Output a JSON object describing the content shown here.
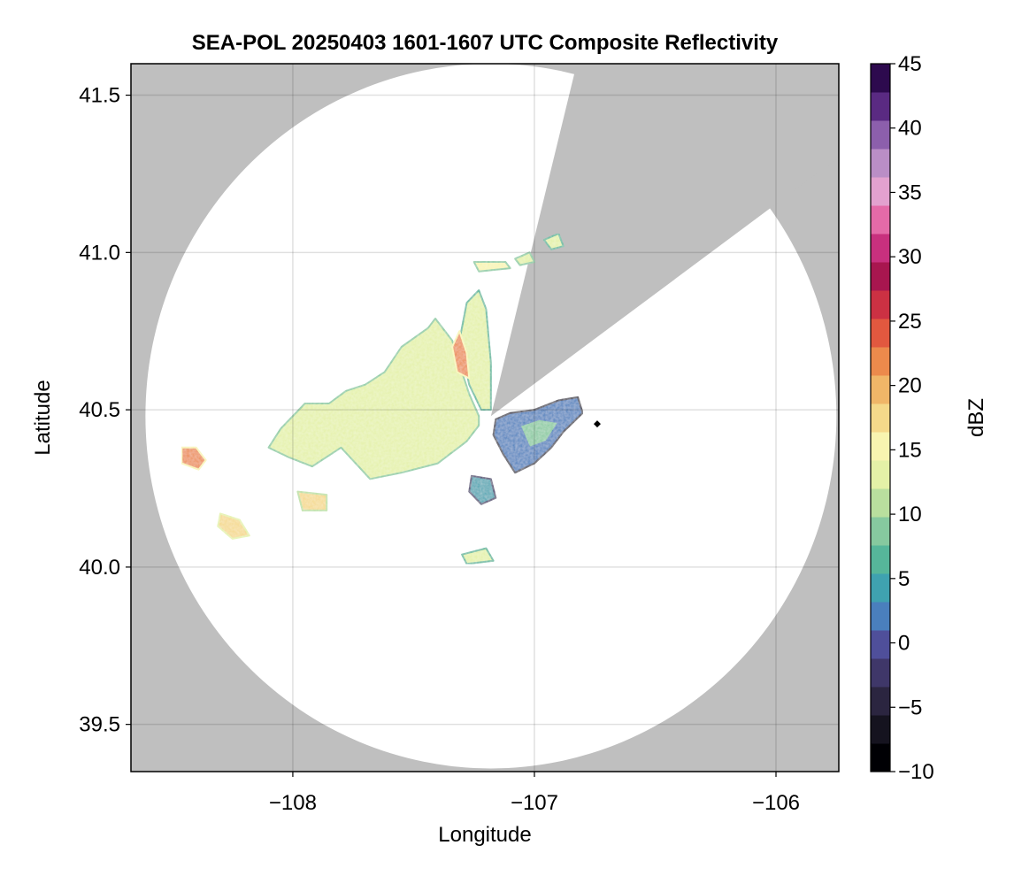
{
  "chart_data": {
    "type": "heatmap",
    "title": "SEA-POL 20250403 1601-1607 UTC Composite Reflectivity",
    "xlabel": "Longitude",
    "ylabel": "Latitude",
    "xlim": [
      -108.67,
      -105.74
    ],
    "ylim": [
      39.35,
      41.6
    ],
    "x_ticks": [
      -108,
      -107,
      -106
    ],
    "x_tick_labels": [
      "−108",
      "−107",
      "−106"
    ],
    "y_ticks": [
      39.5,
      40.0,
      40.5,
      41.0,
      41.5
    ],
    "y_tick_labels": [
      "39.5",
      "40.0",
      "40.5",
      "41.0",
      "41.5"
    ],
    "grid": true,
    "background_color": "#bfbfbf",
    "radar": {
      "center_lon": -107.18,
      "center_lat": 40.48,
      "range_lon": 1.43,
      "range_lat": 1.12,
      "blocked_sectors": [
        {
          "from_lon": -106.85,
          "from_lat": 41.52,
          "to_lon": -106.06,
          "to_lat": 41.12
        }
      ]
    },
    "colorbar": {
      "label": "dBZ",
      "min": -10,
      "max": 45,
      "ticks": [
        -10,
        -5,
        0,
        5,
        10,
        15,
        20,
        25,
        30,
        35,
        40,
        45
      ],
      "tick_labels": [
        "−10",
        "−5",
        "0",
        "5",
        "10",
        "15",
        "20",
        "25",
        "30",
        "35",
        "40",
        "45"
      ],
      "colors": [
        "#000004",
        "#15131f",
        "#2b2540",
        "#3f3769",
        "#4f4f9a",
        "#4a7fbd",
        "#3fa2b0",
        "#56b69a",
        "#86c99f",
        "#b9df9e",
        "#e4f1a7",
        "#f8f4b0",
        "#f5d98a",
        "#f0b668",
        "#ec8a4c",
        "#e2583f",
        "#cc3143",
        "#a8164f",
        "#c8307e",
        "#e46aa8",
        "#e3a1cf",
        "#ba8ec6",
        "#8c5fac",
        "#5a2a82",
        "#2d0a4e"
      ]
    },
    "echo_regions": [
      {
        "name": "main",
        "dbz": 14,
        "points": [
          [
            -107.23,
            40.48
          ],
          [
            -107.27,
            40.55
          ],
          [
            -107.3,
            40.62
          ],
          [
            -107.34,
            40.72
          ],
          [
            -107.41,
            40.79
          ],
          [
            -107.44,
            40.76
          ],
          [
            -107.55,
            40.7
          ],
          [
            -107.62,
            40.62
          ],
          [
            -107.7,
            40.58
          ],
          [
            -107.78,
            40.56
          ],
          [
            -107.85,
            40.52
          ],
          [
            -107.95,
            40.52
          ],
          [
            -108.05,
            40.44
          ],
          [
            -108.1,
            40.38
          ],
          [
            -108.02,
            40.35
          ],
          [
            -107.92,
            40.32
          ],
          [
            -107.8,
            40.38
          ],
          [
            -107.68,
            40.28
          ],
          [
            -107.55,
            40.3
          ],
          [
            -107.4,
            40.33
          ],
          [
            -107.28,
            40.4
          ],
          [
            -107.23,
            40.45
          ]
        ]
      },
      {
        "name": "north-arm",
        "dbz": 13,
        "points": [
          [
            -107.18,
            40.5
          ],
          [
            -107.18,
            40.65
          ],
          [
            -107.2,
            40.82
          ],
          [
            -107.23,
            40.88
          ],
          [
            -107.28,
            40.84
          ],
          [
            -107.31,
            40.72
          ],
          [
            -107.27,
            40.58
          ],
          [
            -107.22,
            40.5
          ]
        ]
      },
      {
        "name": "north-core",
        "dbz": 22,
        "points": [
          [
            -107.27,
            40.6
          ],
          [
            -107.28,
            40.68
          ],
          [
            -107.31,
            40.75
          ],
          [
            -107.34,
            40.7
          ],
          [
            -107.32,
            40.62
          ]
        ]
      },
      {
        "name": "east-cluster",
        "dbz": 2,
        "points": [
          [
            -107.16,
            40.47
          ],
          [
            -107.1,
            40.49
          ],
          [
            -107.0,
            40.5
          ],
          [
            -106.9,
            40.53
          ],
          [
            -106.82,
            40.54
          ],
          [
            -106.8,
            40.49
          ],
          [
            -106.88,
            40.43
          ],
          [
            -106.93,
            40.38
          ],
          [
            -107.0,
            40.33
          ],
          [
            -107.08,
            40.3
          ],
          [
            -107.13,
            40.36
          ],
          [
            -107.17,
            40.42
          ]
        ]
      },
      {
        "name": "east-core",
        "dbz": 9,
        "points": [
          [
            -107.06,
            40.45
          ],
          [
            -106.98,
            40.47
          ],
          [
            -106.9,
            40.46
          ],
          [
            -106.95,
            40.4
          ],
          [
            -107.02,
            40.38
          ]
        ]
      },
      {
        "name": "south-cell",
        "dbz": 4,
        "points": [
          [
            -107.26,
            40.29
          ],
          [
            -107.18,
            40.28
          ],
          [
            -107.16,
            40.22
          ],
          [
            -107.22,
            40.2
          ],
          [
            -107.27,
            40.24
          ]
        ]
      },
      {
        "name": "far-west-cell",
        "dbz": 21,
        "points": [
          [
            -108.46,
            40.38
          ],
          [
            -108.4,
            40.38
          ],
          [
            -108.36,
            40.34
          ],
          [
            -108.39,
            40.31
          ],
          [
            -108.46,
            40.33
          ]
        ]
      },
      {
        "name": "sw-cell-1",
        "dbz": 18,
        "points": [
          [
            -108.3,
            40.17
          ],
          [
            -108.22,
            40.15
          ],
          [
            -108.18,
            40.1
          ],
          [
            -108.25,
            40.09
          ],
          [
            -108.31,
            40.13
          ]
        ]
      },
      {
        "name": "sw-cell-2",
        "dbz": 17,
        "points": [
          [
            -107.98,
            40.24
          ],
          [
            -107.86,
            40.23
          ],
          [
            -107.86,
            40.18
          ],
          [
            -107.96,
            40.18
          ]
        ]
      },
      {
        "name": "south-cell-2",
        "dbz": 13,
        "points": [
          [
            -107.3,
            40.04
          ],
          [
            -107.2,
            40.06
          ],
          [
            -107.17,
            40.02
          ],
          [
            -107.28,
            40.01
          ]
        ]
      },
      {
        "name": "n-band-1",
        "dbz": 15,
        "points": [
          [
            -107.25,
            40.97
          ],
          [
            -107.12,
            40.97
          ],
          [
            -107.1,
            40.95
          ],
          [
            -107.23,
            40.94
          ]
        ]
      },
      {
        "name": "n-band-2",
        "dbz": 14,
        "points": [
          [
            -107.08,
            40.98
          ],
          [
            -107.02,
            41.0
          ],
          [
            -107.0,
            40.97
          ],
          [
            -107.06,
            40.96
          ]
        ]
      },
      {
        "name": "ne-band",
        "dbz": 13,
        "points": [
          [
            -106.96,
            41.04
          ],
          [
            -106.9,
            41.06
          ],
          [
            -106.88,
            41.02
          ],
          [
            -106.93,
            41.01
          ]
        ]
      }
    ],
    "point_marker": {
      "lon": -106.74,
      "lat": 40.455
    }
  }
}
